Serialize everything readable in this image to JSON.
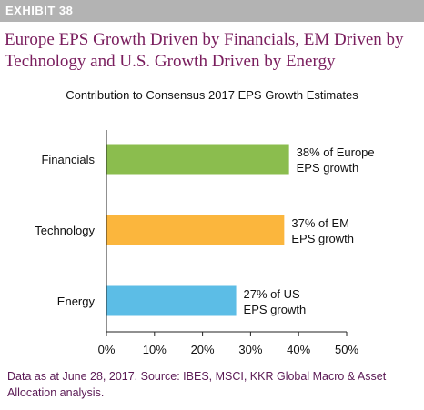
{
  "exhibit_label": "EXHIBIT 38",
  "headline": "Europe EPS Growth Driven by Financials, EM Driven by Technology and U.S. Growth Driven by Energy",
  "footer": "Data as at June 28, 2017. Source: IBES, MSCI, KKR Global Macro & Asset Allocation analysis.",
  "chart_data": {
    "type": "bar",
    "orientation": "horizontal",
    "title": "Contribution to Consensus 2017 EPS Growth Estimates",
    "categories": [
      "Financials",
      "Technology",
      "Energy"
    ],
    "values": [
      38,
      37,
      27
    ],
    "value_unit": "%",
    "data_labels": [
      [
        "38% of Europe",
        "EPS growth"
      ],
      [
        "37% of EM",
        "EPS growth"
      ],
      [
        "27% of US",
        "EPS growth"
      ]
    ],
    "colors": [
      "#8bbd4e",
      "#fbb63d",
      "#5cbde6"
    ],
    "xlim": [
      0,
      50
    ],
    "xticks": [
      "0%",
      "10%",
      "20%",
      "30%",
      "40%",
      "50%"
    ],
    "xtick_values": [
      0,
      10,
      20,
      30,
      40,
      50
    ],
    "grid": false,
    "legend": "none"
  }
}
